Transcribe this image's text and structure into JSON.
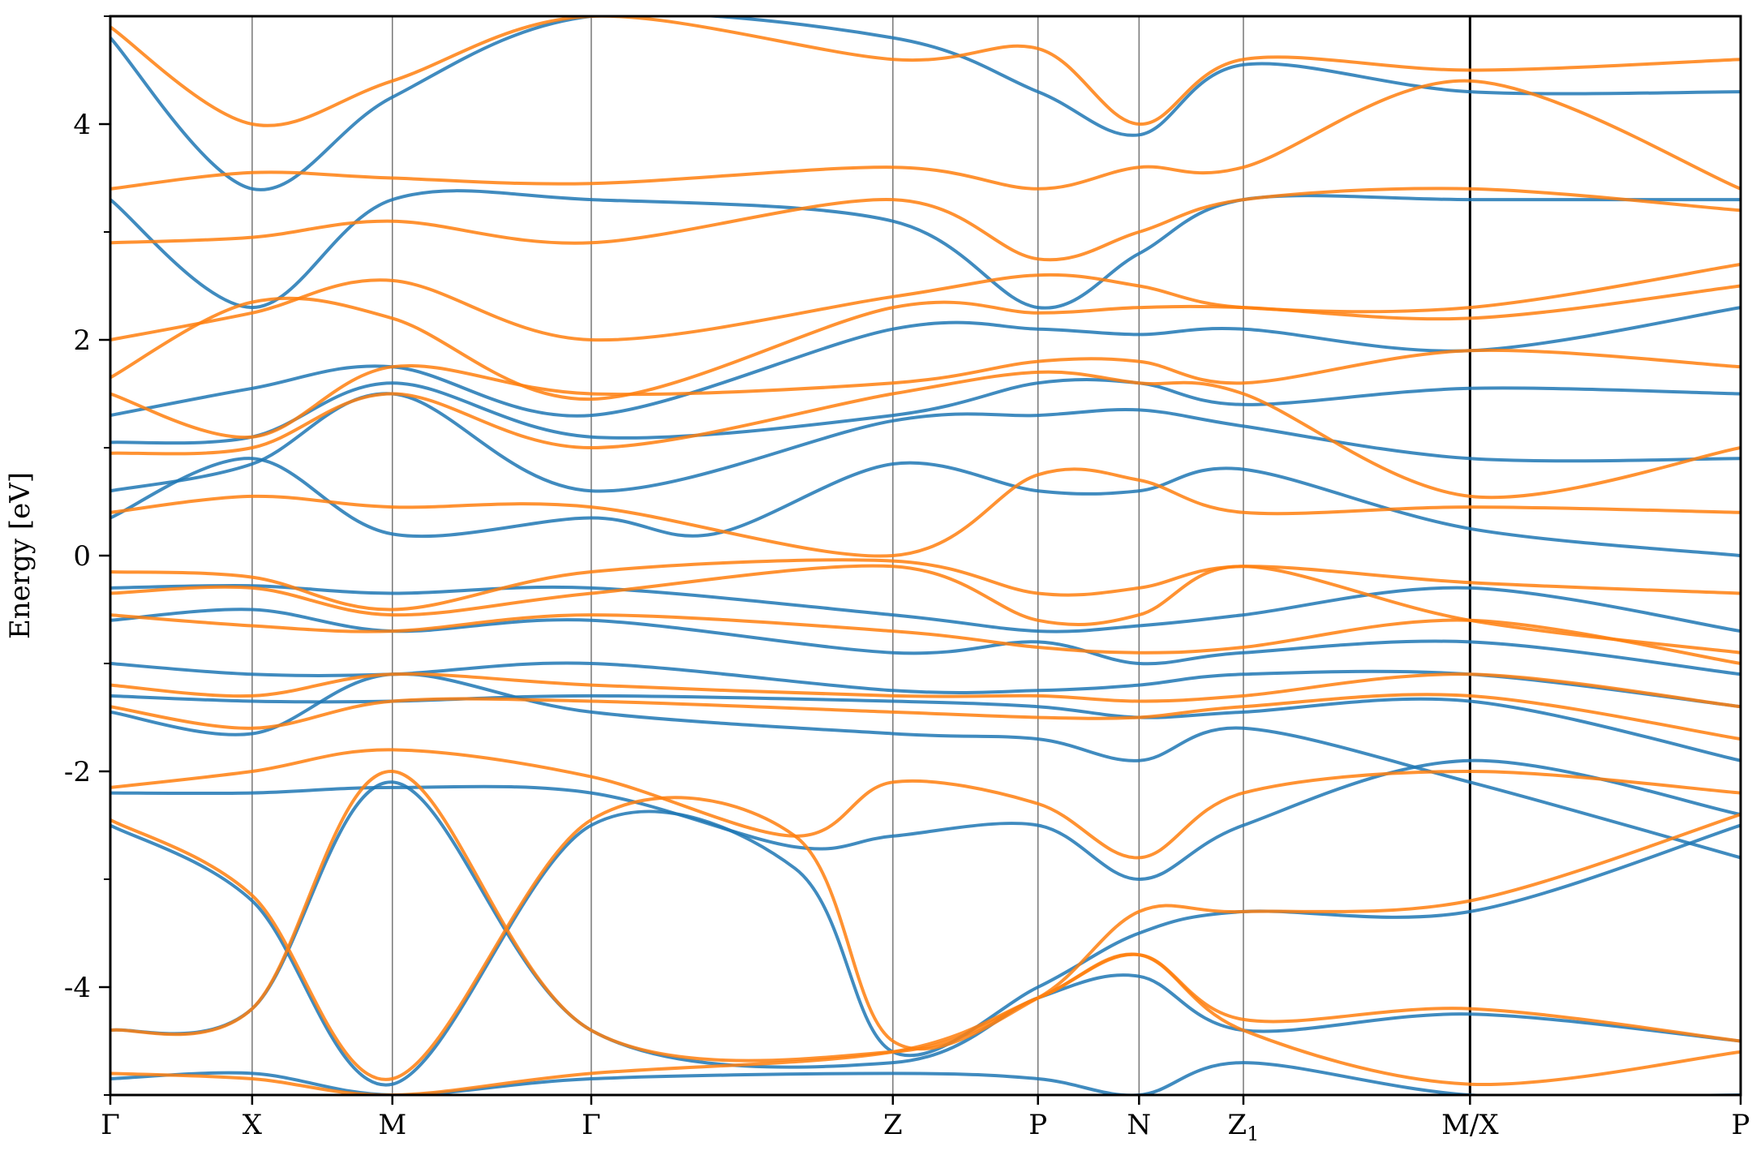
{
  "chart_data": {
    "type": "line",
    "title": "",
    "xlabel": "",
    "ylabel": "Energy [eV]",
    "ylim": [
      -5,
      5
    ],
    "yticks": [
      -4,
      -2,
      0,
      2,
      4
    ],
    "yticks_minor": [
      -5,
      -3,
      -1,
      1,
      3,
      5
    ],
    "ytick_labels": [
      "-4",
      "-2",
      "0",
      "2",
      "4"
    ],
    "x_range": [
      0,
      1
    ],
    "kpoints": [
      {
        "label": "Γ",
        "sub": "",
        "x": 0.0
      },
      {
        "label": "X",
        "sub": "",
        "x": 0.087
      },
      {
        "label": "M",
        "sub": "",
        "x": 0.173
      },
      {
        "label": "Γ",
        "sub": "",
        "x": 0.295
      },
      {
        "label": "Z",
        "sub": "",
        "x": 0.48
      },
      {
        "label": "P",
        "sub": "",
        "x": 0.569
      },
      {
        "label": "N",
        "sub": "",
        "x": 0.631
      },
      {
        "label": "Z",
        "sub": "1",
        "x": 0.695
      },
      {
        "label": "M/X",
        "sub": "",
        "x": 0.834
      },
      {
        "label": "P",
        "sub": "",
        "x": 1.0
      }
    ],
    "series": [
      {
        "color": "#1f77b4",
        "bands": [
          {
            "x": [
              0,
              0.087,
              0.173,
              0.295,
              0.48,
              0.569,
              0.631,
              0.695,
              0.834,
              1
            ],
            "y": [
              -4.85,
              -4.8,
              -5.0,
              -4.85,
              -4.8,
              -4.85,
              -5.0,
              -4.7,
              -5.0,
              -5.0
            ]
          },
          {
            "x": [
              0,
              0.087,
              0.173,
              0.295,
              0.48,
              0.569,
              0.631,
              0.695,
              0.834,
              1
            ],
            "y": [
              -4.4,
              -4.2,
              -2.1,
              -4.4,
              -4.7,
              -4.1,
              -3.9,
              -4.4,
              -4.25,
              -4.5
            ]
          },
          {
            "x": [
              0,
              0.087,
              0.173,
              0.295,
              0.42,
              0.48,
              0.569,
              0.631,
              0.695,
              0.834,
              1
            ],
            "y": [
              -2.5,
              -3.2,
              -4.9,
              -2.5,
              -2.9,
              -4.6,
              -4.0,
              -3.5,
              -3.3,
              -3.3,
              -2.5
            ]
          },
          {
            "x": [
              0,
              0.087,
              0.173,
              0.295,
              0.42,
              0.48,
              0.569,
              0.631,
              0.695,
              0.834,
              1
            ],
            "y": [
              -2.2,
              -2.2,
              -2.15,
              -2.2,
              -2.7,
              -2.6,
              -2.5,
              -3.0,
              -2.5,
              -1.9,
              -2.4
            ]
          },
          {
            "x": [
              0,
              0.087,
              0.173,
              0.295,
              0.48,
              0.569,
              0.631,
              0.695,
              0.834,
              1
            ],
            "y": [
              -1.45,
              -1.65,
              -1.1,
              -1.45,
              -1.65,
              -1.7,
              -1.9,
              -1.6,
              -2.1,
              -2.8
            ]
          },
          {
            "x": [
              0,
              0.087,
              0.173,
              0.295,
              0.48,
              0.569,
              0.631,
              0.695,
              0.834,
              1
            ],
            "y": [
              -1.3,
              -1.35,
              -1.35,
              -1.3,
              -1.35,
              -1.4,
              -1.5,
              -1.45,
              -1.35,
              -1.9
            ]
          },
          {
            "x": [
              0,
              0.087,
              0.173,
              0.295,
              0.48,
              0.569,
              0.631,
              0.695,
              0.834,
              1
            ],
            "y": [
              -1.0,
              -1.1,
              -1.1,
              -1.0,
              -1.25,
              -1.25,
              -1.2,
              -1.1,
              -1.1,
              -1.4
            ]
          },
          {
            "x": [
              0,
              0.087,
              0.173,
              0.295,
              0.48,
              0.569,
              0.631,
              0.695,
              0.834,
              1
            ],
            "y": [
              -0.6,
              -0.5,
              -0.7,
              -0.6,
              -0.9,
              -0.8,
              -1.0,
              -0.9,
              -0.8,
              -1.1
            ]
          },
          {
            "x": [
              0,
              0.087,
              0.173,
              0.295,
              0.48,
              0.569,
              0.631,
              0.695,
              0.834,
              1
            ],
            "y": [
              -0.3,
              -0.28,
              -0.35,
              -0.3,
              -0.55,
              -0.7,
              -0.65,
              -0.55,
              -0.3,
              -0.7
            ]
          },
          {
            "x": [
              0,
              0.087,
              0.173,
              0.295,
              0.37,
              0.48,
              0.569,
              0.631,
              0.695,
              0.834,
              1
            ],
            "y": [
              0.35,
              0.9,
              0.2,
              0.35,
              0.2,
              0.85,
              0.6,
              0.6,
              0.8,
              0.25,
              0.0
            ]
          },
          {
            "x": [
              0,
              0.087,
              0.173,
              0.295,
              0.48,
              0.569,
              0.631,
              0.695,
              0.834,
              1
            ],
            "y": [
              0.6,
              0.85,
              1.5,
              0.6,
              1.25,
              1.3,
              1.35,
              1.2,
              0.9,
              0.9
            ]
          },
          {
            "x": [
              0,
              0.087,
              0.173,
              0.295,
              0.48,
              0.569,
              0.631,
              0.695,
              0.834,
              1
            ],
            "y": [
              1.05,
              1.1,
              1.6,
              1.1,
              1.3,
              1.6,
              1.6,
              1.4,
              1.55,
              1.5
            ]
          },
          {
            "x": [
              0,
              0.087,
              0.173,
              0.295,
              0.48,
              0.569,
              0.631,
              0.695,
              0.834,
              1
            ],
            "y": [
              1.3,
              1.55,
              1.75,
              1.3,
              2.1,
              2.1,
              2.05,
              2.1,
              1.9,
              2.3
            ]
          },
          {
            "x": [
              0,
              0.087,
              0.173,
              0.295,
              0.48,
              0.569,
              0.631,
              0.695,
              0.834,
              1
            ],
            "y": [
              3.3,
              2.3,
              3.3,
              3.3,
              3.1,
              2.3,
              2.8,
              3.3,
              3.3,
              3.3
            ]
          },
          {
            "x": [
              0,
              0.087,
              0.173,
              0.295,
              0.48,
              0.569,
              0.631,
              0.695,
              0.834,
              1
            ],
            "y": [
              4.8,
              3.4,
              4.25,
              5.0,
              4.8,
              4.3,
              3.9,
              4.55,
              4.3,
              4.3
            ]
          }
        ]
      },
      {
        "color": "#ff7f0e",
        "bands": [
          {
            "x": [
              0,
              0.087,
              0.173,
              0.295,
              0.48,
              0.569,
              0.631,
              0.695,
              0.834,
              1
            ],
            "y": [
              -4.8,
              -4.85,
              -5.0,
              -4.8,
              -4.6,
              -4.1,
              -3.7,
              -4.4,
              -4.9,
              -4.6
            ]
          },
          {
            "x": [
              0,
              0.087,
              0.173,
              0.295,
              0.48,
              0.569,
              0.631,
              0.695,
              0.834,
              1
            ],
            "y": [
              -4.4,
              -4.2,
              -2.0,
              -4.4,
              -4.6,
              -4.1,
              -3.7,
              -4.3,
              -4.2,
              -4.5
            ]
          },
          {
            "x": [
              0,
              0.087,
              0.173,
              0.295,
              0.42,
              0.48,
              0.569,
              0.631,
              0.695,
              0.834,
              1
            ],
            "y": [
              -2.45,
              -3.15,
              -4.85,
              -2.45,
              -2.6,
              -4.5,
              -4.1,
              -3.3,
              -3.3,
              -3.2,
              -2.4
            ]
          },
          {
            "x": [
              0,
              0.087,
              0.173,
              0.295,
              0.42,
              0.48,
              0.569,
              0.631,
              0.695,
              0.834,
              1
            ],
            "y": [
              -2.15,
              -2.0,
              -1.8,
              -2.05,
              -2.6,
              -2.1,
              -2.3,
              -2.8,
              -2.2,
              -2.0,
              -2.2
            ]
          },
          {
            "x": [
              0,
              0.087,
              0.173,
              0.295,
              0.48,
              0.569,
              0.631,
              0.695,
              0.834,
              1
            ],
            "y": [
              -1.4,
              -1.6,
              -1.35,
              -1.35,
              -1.45,
              -1.5,
              -1.5,
              -1.4,
              -1.3,
              -1.7
            ]
          },
          {
            "x": [
              0,
              0.087,
              0.173,
              0.295,
              0.48,
              0.569,
              0.631,
              0.695,
              0.834,
              1
            ],
            "y": [
              -1.2,
              -1.3,
              -1.1,
              -1.2,
              -1.3,
              -1.3,
              -1.35,
              -1.3,
              -1.1,
              -1.4
            ]
          },
          {
            "x": [
              0,
              0.087,
              0.173,
              0.295,
              0.48,
              0.569,
              0.631,
              0.695,
              0.834,
              1
            ],
            "y": [
              -0.55,
              -0.65,
              -0.7,
              -0.55,
              -0.7,
              -0.85,
              -0.9,
              -0.85,
              -0.6,
              -1.0
            ]
          },
          {
            "x": [
              0,
              0.087,
              0.173,
              0.295,
              0.48,
              0.569,
              0.631,
              0.695,
              0.834,
              1
            ],
            "y": [
              -0.35,
              -0.3,
              -0.55,
              -0.35,
              -0.1,
              -0.6,
              -0.55,
              -0.1,
              -0.6,
              -0.9
            ]
          },
          {
            "x": [
              0,
              0.087,
              0.173,
              0.295,
              0.48,
              0.569,
              0.631,
              0.695,
              0.834,
              1
            ],
            "y": [
              -0.15,
              -0.2,
              -0.5,
              -0.15,
              -0.05,
              -0.35,
              -0.3,
              -0.1,
              -0.25,
              -0.35
            ]
          },
          {
            "x": [
              0,
              0.087,
              0.173,
              0.295,
              0.48,
              0.569,
              0.631,
              0.695,
              0.834,
              1
            ],
            "y": [
              0.4,
              0.55,
              0.45,
              0.45,
              0.0,
              0.75,
              0.7,
              0.4,
              0.45,
              0.4
            ]
          },
          {
            "x": [
              0,
              0.087,
              0.173,
              0.295,
              0.48,
              0.569,
              0.631,
              0.695,
              0.834,
              1
            ],
            "y": [
              0.95,
              1.0,
              1.5,
              1.0,
              1.5,
              1.7,
              1.6,
              1.5,
              0.55,
              1.0
            ]
          },
          {
            "x": [
              0,
              0.087,
              0.173,
              0.295,
              0.48,
              0.569,
              0.631,
              0.695,
              0.834,
              1
            ],
            "y": [
              1.5,
              1.1,
              1.75,
              1.5,
              1.6,
              1.8,
              1.8,
              1.6,
              1.9,
              1.75
            ]
          },
          {
            "x": [
              0,
              0.087,
              0.173,
              0.295,
              0.48,
              0.569,
              0.631,
              0.695,
              0.834,
              1
            ],
            "y": [
              1.65,
              2.35,
              2.2,
              1.45,
              2.3,
              2.25,
              2.3,
              2.3,
              2.2,
              2.5
            ]
          },
          {
            "x": [
              0,
              0.087,
              0.173,
              0.295,
              0.48,
              0.569,
              0.631,
              0.695,
              0.834,
              1
            ],
            "y": [
              2.0,
              2.25,
              2.55,
              2.0,
              2.4,
              2.6,
              2.5,
              2.3,
              2.3,
              2.7
            ]
          },
          {
            "x": [
              0,
              0.087,
              0.173,
              0.295,
              0.48,
              0.569,
              0.631,
              0.695,
              0.834,
              1
            ],
            "y": [
              2.9,
              2.95,
              3.1,
              2.9,
              3.3,
              2.75,
              3.0,
              3.3,
              3.4,
              3.2
            ]
          },
          {
            "x": [
              0,
              0.087,
              0.173,
              0.295,
              0.48,
              0.569,
              0.631,
              0.695,
              0.834,
              1
            ],
            "y": [
              3.4,
              3.55,
              3.5,
              3.45,
              3.6,
              3.4,
              3.6,
              3.6,
              4.4,
              3.4
            ]
          },
          {
            "x": [
              0,
              0.087,
              0.173,
              0.295,
              0.48,
              0.569,
              0.631,
              0.695,
              0.834,
              1
            ],
            "y": [
              4.9,
              4.0,
              4.4,
              5.0,
              4.6,
              4.7,
              4.0,
              4.6,
              4.5,
              4.6
            ]
          }
        ]
      }
    ]
  }
}
